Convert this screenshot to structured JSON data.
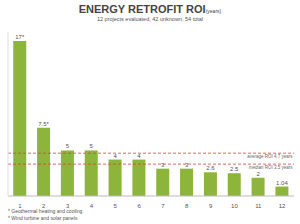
{
  "chart_data": {
    "type": "bar",
    "title": "ENERGY RETROFIT ROI(years)",
    "subtitle": "12 projects evaluated, 42 unknown, 54 total",
    "categories": [
      "1",
      "2",
      "3",
      "4",
      "5",
      "6",
      "7",
      "8",
      "9",
      "10",
      "11",
      "12"
    ],
    "values": [
      17,
      7.5,
      5,
      5,
      4,
      4,
      3,
      3,
      2.6,
      2.5,
      2,
      1.04
    ],
    "value_labels": [
      "17*",
      "7.5*",
      "5",
      "5",
      "4",
      "4",
      "3",
      "3",
      "2.6",
      "2.5",
      "2",
      "1.04"
    ],
    "data_labels": true,
    "color": "#8db53c",
    "ylim": [
      0,
      18
    ],
    "tick_labels": "x",
    "grid": false,
    "reference_lines": [
      {
        "value": 4.7,
        "label": "average ROI 4.7 years",
        "color": "#e0403a"
      },
      {
        "value": 3.5,
        "label": "median ROI 3.5 years",
        "color": "#e0403a"
      }
    ],
    "footnotes": [
      "* Geothermal heating and cooling",
      "* Wind turbine and solar panels"
    ]
  }
}
